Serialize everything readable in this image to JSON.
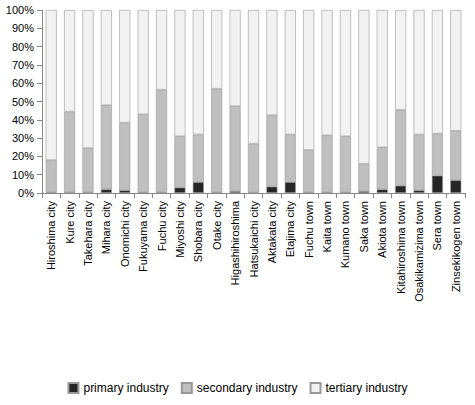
{
  "chart_data": {
    "type": "bar",
    "stacked": true,
    "grid": false,
    "legend": "bottom",
    "categories": [
      "Hiroshima city",
      "Kure city",
      "Takehara city",
      "Mihara city",
      "Onomichi city",
      "Fukuyama city",
      "Fuchu city",
      "Miyoshi city",
      "Shobara city",
      "Otake city",
      "Higashihiroshima",
      "Hatsukaichi city",
      "Aktakata city",
      "Etajima city",
      "Fuchu town",
      "Kaita town",
      "Kumano town",
      "Saka town",
      "Akiota town",
      "Kitahiroshima town",
      "Osakikamizima town",
      "Sera town",
      "Zinsekikogen town"
    ],
    "series": [
      {
        "name": "primary industry",
        "color": "#262626",
        "values": [
          0.5,
          0.5,
          0.5,
          2,
          1.5,
          0.5,
          0.5,
          3,
          6,
          0.5,
          1,
          0.5,
          3.5,
          6,
          0.5,
          0.5,
          0.5,
          1,
          2,
          4,
          1.5,
          9.5,
          7
        ]
      },
      {
        "name": "secondary industry",
        "color": "#bfbfbf",
        "values": [
          17.5,
          44,
          24,
          46,
          37,
          42.5,
          56,
          28,
          26,
          56.5,
          46.5,
          26.5,
          39,
          26,
          23,
          31,
          30.5,
          15,
          23,
          41.5,
          30.5,
          23,
          27
        ]
      },
      {
        "name": "tertiary industry",
        "color": "#f2f2f2",
        "values": [
          82,
          55.5,
          75.5,
          52,
          61.5,
          57,
          43.5,
          69,
          68,
          43,
          52.5,
          73,
          57.5,
          68,
          76.5,
          68.5,
          69,
          84,
          75,
          54.5,
          68,
          67.5,
          66
        ]
      }
    ],
    "ylim": [
      0,
      100
    ],
    "yticks": [
      {
        "value": 0,
        "label": "0%"
      },
      {
        "value": 10,
        "label": "10%"
      },
      {
        "value": 20,
        "label": "20%"
      },
      {
        "value": 30,
        "label": "30%"
      },
      {
        "value": 40,
        "label": "40%"
      },
      {
        "value": 50,
        "label": "50%"
      },
      {
        "value": 60,
        "label": "60%"
      },
      {
        "value": 70,
        "label": "70%"
      },
      {
        "value": 80,
        "label": "80%"
      },
      {
        "value": 90,
        "label": "90%"
      },
      {
        "value": 100,
        "label": "100%"
      }
    ]
  }
}
